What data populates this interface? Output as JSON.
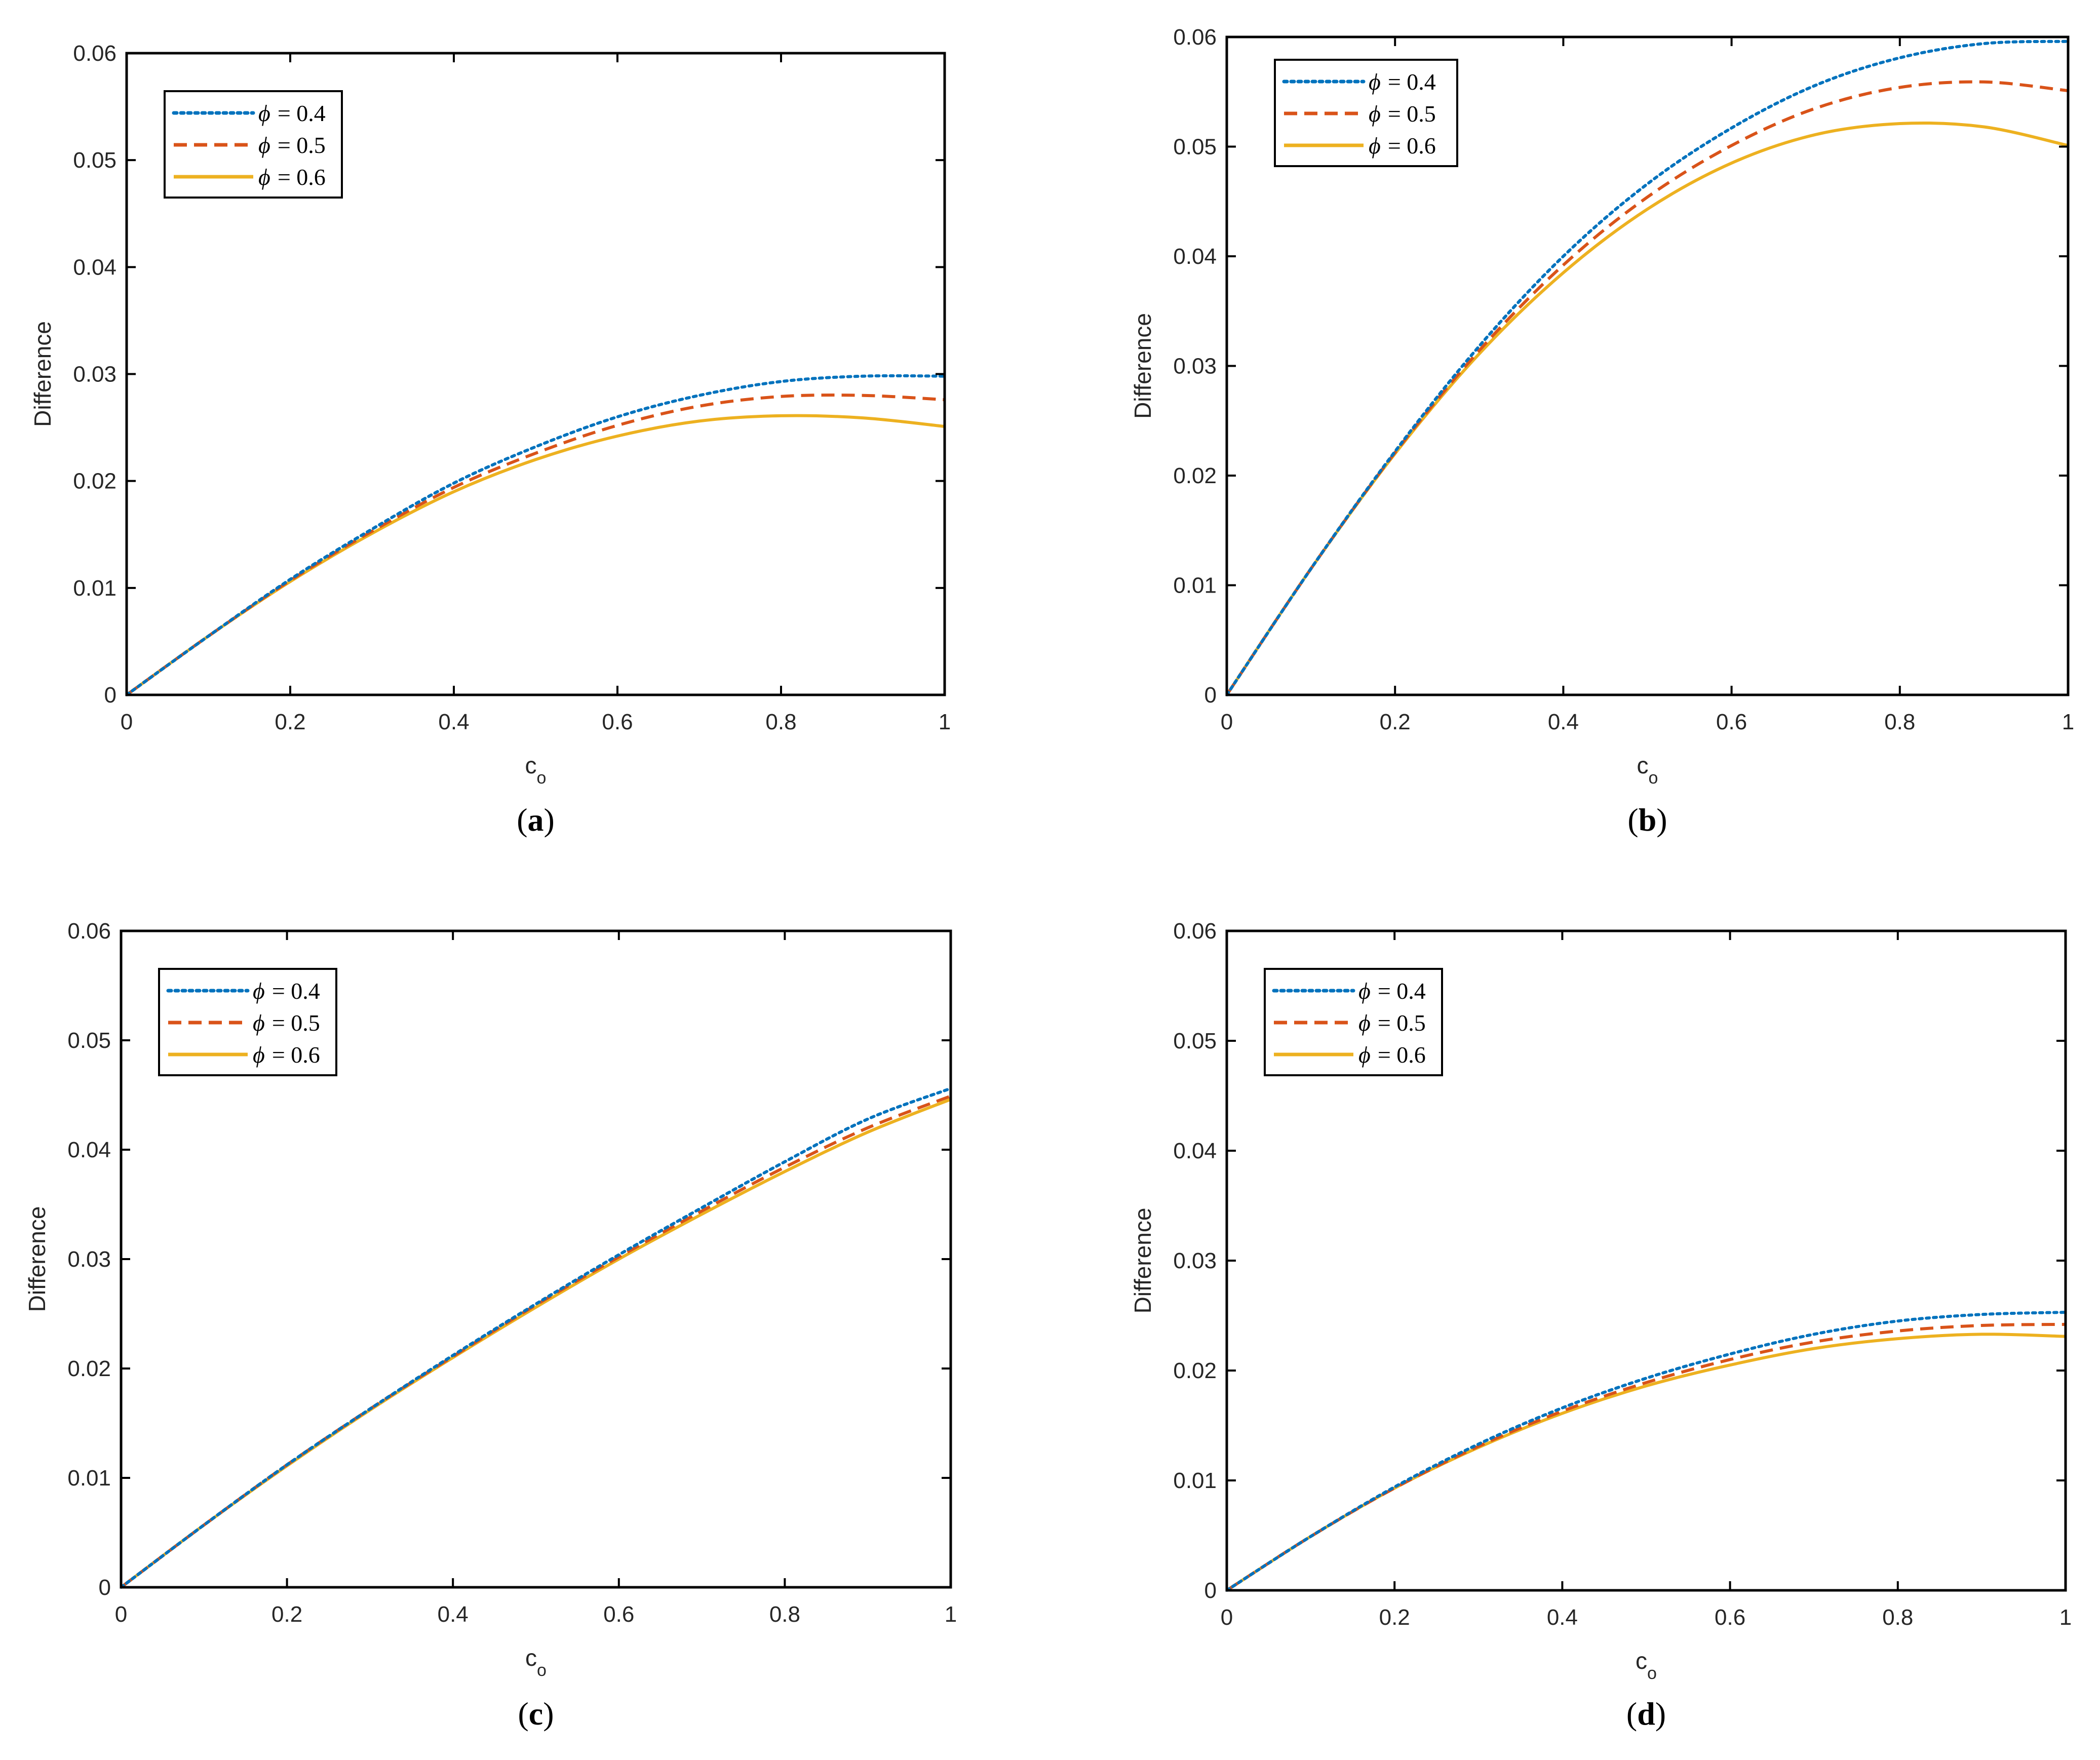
{
  "figure": {
    "colors": {
      "phi_0_4": "#0072BD",
      "phi_0_5": "#D95319",
      "phi_0_6": "#EDB120",
      "axes": "#000000",
      "text": "#262626"
    }
  },
  "chart_data": [
    {
      "panel": "a",
      "panel_label": "(a)",
      "type": "line",
      "xlabel": "c",
      "xlabel_subscript": "o",
      "ylabel": "Difference",
      "xlim": [
        0,
        1
      ],
      "ylim": [
        0,
        0.06
      ],
      "xticks": [
        "0",
        "0.2",
        "0.4",
        "0.6",
        "0.8",
        "1"
      ],
      "yticks": [
        "0",
        "0.01",
        "0.02",
        "0.03",
        "0.04",
        "0.05",
        "0.06"
      ],
      "legend_position": "top-left",
      "x": [
        0,
        0.1,
        0.2,
        0.3,
        0.4,
        0.5,
        0.6,
        0.7,
        0.8,
        0.9,
        1.0
      ],
      "series": [
        {
          "name": "ϕ = 0.4",
          "symbol": "ϕ",
          "equals": "= 0.4",
          "style": "dotted",
          "values": [
            0,
            0.0055,
            0.0108,
            0.0155,
            0.0198,
            0.0232,
            0.026,
            0.028,
            0.0293,
            0.0298,
            0.0298
          ]
        },
        {
          "name": "ϕ = 0.5",
          "symbol": "ϕ",
          "equals": "= 0.5",
          "style": "dashed",
          "values": [
            0,
            0.0055,
            0.0107,
            0.0153,
            0.0194,
            0.0226,
            0.0252,
            0.027,
            0.0279,
            0.028,
            0.0276
          ]
        },
        {
          "name": "ϕ = 0.6",
          "symbol": "ϕ",
          "equals": "= 0.6",
          "style": "solid",
          "values": [
            0,
            0.0055,
            0.0106,
            0.0151,
            0.019,
            0.022,
            0.0242,
            0.0256,
            0.0261,
            0.0259,
            0.0251
          ]
        }
      ]
    },
    {
      "panel": "b",
      "panel_label": "(b)",
      "type": "line",
      "xlabel": "c",
      "xlabel_subscript": "o",
      "ylabel": "Difference",
      "xlim": [
        0,
        1
      ],
      "ylim": [
        0,
        0.06
      ],
      "xticks": [
        "0",
        "0.2",
        "0.4",
        "0.6",
        "0.8",
        "1"
      ],
      "yticks": [
        "0",
        "0.01",
        "0.02",
        "0.03",
        "0.04",
        "0.05",
        "0.06"
      ],
      "legend_position": "top-left",
      "x": [
        0,
        0.1,
        0.2,
        0.3,
        0.4,
        0.5,
        0.6,
        0.7,
        0.8,
        0.9,
        1.0
      ],
      "series": [
        {
          "name": "ϕ = 0.4",
          "symbol": "ϕ",
          "equals": "= 0.4",
          "style": "dotted",
          "values": [
            0,
            0.0115,
            0.0222,
            0.0318,
            0.04,
            0.0466,
            0.0517,
            0.0556,
            0.0581,
            0.0594,
            0.0596
          ]
        },
        {
          "name": "ϕ = 0.5",
          "symbol": "ϕ",
          "equals": "= 0.5",
          "style": "dashed",
          "values": [
            0,
            0.0115,
            0.0221,
            0.0314,
            0.0392,
            0.0454,
            0.0501,
            0.0535,
            0.0554,
            0.0559,
            0.0551
          ]
        },
        {
          "name": "ϕ = 0.6",
          "symbol": "ϕ",
          "equals": "= 0.6",
          "style": "solid",
          "values": [
            0,
            0.0115,
            0.022,
            0.0311,
            0.0385,
            0.0443,
            0.0485,
            0.0511,
            0.0521,
            0.0518,
            0.0501
          ]
        }
      ]
    },
    {
      "panel": "c",
      "panel_label": "(c)",
      "type": "line",
      "xlabel": "c",
      "xlabel_subscript": "o",
      "ylabel": "Difference",
      "xlim": [
        0,
        1
      ],
      "ylim": [
        0,
        0.06
      ],
      "xticks": [
        "0",
        "0.2",
        "0.4",
        "0.6",
        "0.8",
        "1"
      ],
      "yticks": [
        "0",
        "0.01",
        "0.02",
        "0.03",
        "0.04",
        "0.05",
        "0.06"
      ],
      "legend_position": "top-left",
      "x": [
        0,
        0.1,
        0.2,
        0.3,
        0.4,
        0.5,
        0.6,
        0.7,
        0.8,
        0.9,
        1.0
      ],
      "series": [
        {
          "name": "ϕ = 0.4",
          "symbol": "ϕ",
          "equals": "= 0.4",
          "style": "dotted",
          "values": [
            0,
            0.0057,
            0.0112,
            0.0163,
            0.0212,
            0.0259,
            0.0304,
            0.0347,
            0.0389,
            0.0428,
            0.0456
          ]
        },
        {
          "name": "ϕ = 0.5",
          "symbol": "ϕ",
          "equals": "= 0.5",
          "style": "dashed",
          "values": [
            0,
            0.0057,
            0.0112,
            0.0163,
            0.0211,
            0.0258,
            0.0302,
            0.0344,
            0.0384,
            0.042,
            0.0449
          ]
        },
        {
          "name": "ϕ = 0.6",
          "symbol": "ϕ",
          "equals": "= 0.6",
          "style": "solid",
          "values": [
            0,
            0.0057,
            0.0111,
            0.0162,
            0.021,
            0.0256,
            0.03,
            0.0341,
            0.038,
            0.0416,
            0.0446
          ]
        }
      ]
    },
    {
      "panel": "d",
      "panel_label": "(d)",
      "type": "line",
      "xlabel": "c",
      "xlabel_subscript": "o",
      "ylabel": "Difference",
      "xlim": [
        0,
        1
      ],
      "ylim": [
        0,
        0.06
      ],
      "xticks": [
        "0",
        "0.2",
        "0.4",
        "0.6",
        "0.8",
        "1"
      ],
      "yticks": [
        "0",
        "0.01",
        "0.02",
        "0.03",
        "0.04",
        "0.05",
        "0.06"
      ],
      "legend_position": "top-left",
      "x": [
        0,
        0.1,
        0.2,
        0.3,
        0.4,
        0.5,
        0.6,
        0.7,
        0.8,
        0.9,
        1.0
      ],
      "series": [
        {
          "name": "ϕ = 0.4",
          "symbol": "ϕ",
          "equals": "= 0.4",
          "style": "dotted",
          "values": [
            0,
            0.0049,
            0.0094,
            0.0133,
            0.0166,
            0.0193,
            0.0215,
            0.0233,
            0.0245,
            0.0251,
            0.0253
          ]
        },
        {
          "name": "ϕ = 0.5",
          "symbol": "ϕ",
          "equals": "= 0.5",
          "style": "dashed",
          "values": [
            0,
            0.0049,
            0.0093,
            0.0131,
            0.0163,
            0.0189,
            0.021,
            0.0226,
            0.0236,
            0.0241,
            0.0242
          ]
        },
        {
          "name": "ϕ = 0.6",
          "symbol": "ϕ",
          "equals": "= 0.6",
          "style": "solid",
          "values": [
            0,
            0.0049,
            0.0093,
            0.013,
            0.0161,
            0.0186,
            0.0205,
            0.022,
            0.0229,
            0.0233,
            0.0231
          ]
        }
      ]
    }
  ]
}
